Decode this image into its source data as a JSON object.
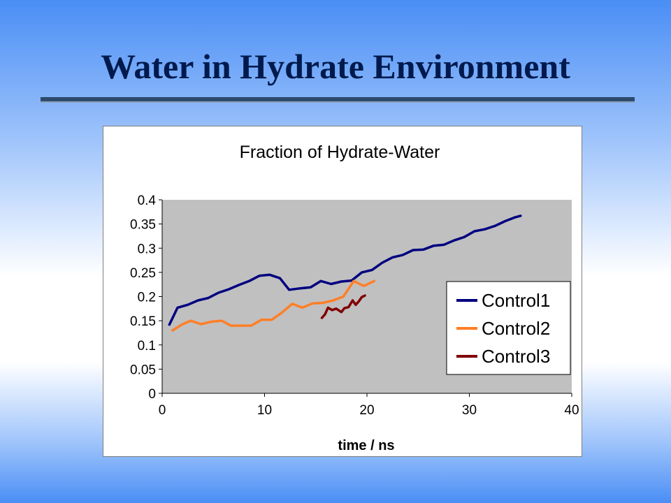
{
  "slide": {
    "title": "Water in Hydrate Environment"
  },
  "chart_data": {
    "type": "line",
    "title": "Fraction of Hydrate-Water",
    "xlabel": "time / ns",
    "ylabel": "",
    "xlim": [
      0,
      40
    ],
    "ylim": [
      0,
      0.4
    ],
    "x_ticks": [
      "0",
      "10",
      "20",
      "30",
      "40"
    ],
    "y_ticks": [
      "0",
      "0.05",
      "0.1",
      "0.15",
      "0.2",
      "0.25",
      "0.3",
      "0.35",
      "0.4"
    ],
    "grid": false,
    "plot_background": "#c0c0c0",
    "legend_position": "right",
    "series": [
      {
        "name": "Control1",
        "color": "#000080",
        "x": [
          0.7,
          1.5,
          2.5,
          3.5,
          4.5,
          5.5,
          6.5,
          7.5,
          8.5,
          9.5,
          10.5,
          11.5,
          12.4,
          13.5,
          14.5,
          15.5,
          16.5,
          17.5,
          18.5,
          19.5,
          20.5,
          21.5,
          22.5,
          23.5,
          24.5,
          25.5,
          26.5,
          27.5,
          28.5,
          29.5,
          30.5,
          31.5,
          32.5,
          33.5,
          34.5,
          35.0
        ],
        "y": [
          0.142,
          0.177,
          0.183,
          0.192,
          0.197,
          0.208,
          0.215,
          0.224,
          0.232,
          0.243,
          0.245,
          0.238,
          0.214,
          0.217,
          0.219,
          0.232,
          0.226,
          0.231,
          0.233,
          0.25,
          0.255,
          0.27,
          0.281,
          0.286,
          0.296,
          0.297,
          0.305,
          0.307,
          0.316,
          0.323,
          0.335,
          0.339,
          0.346,
          0.356,
          0.364,
          0.367
        ]
      },
      {
        "name": "Control2",
        "color": "#ff7f27",
        "x": [
          1.0,
          2.0,
          2.8,
          3.8,
          4.8,
          5.8,
          6.7,
          7.7,
          8.7,
          9.7,
          10.7,
          11.7,
          12.7,
          13.7,
          14.7,
          15.7,
          16.7,
          17.7,
          18.7,
          19.7,
          20.7
        ],
        "y": [
          0.13,
          0.143,
          0.15,
          0.143,
          0.148,
          0.15,
          0.14,
          0.14,
          0.14,
          0.152,
          0.152,
          0.167,
          0.185,
          0.177,
          0.186,
          0.187,
          0.192,
          0.2,
          0.232,
          0.222,
          0.232
        ]
      },
      {
        "name": "Control3",
        "color": "#800000",
        "x": [
          15.6,
          15.9,
          16.2,
          16.6,
          17.0,
          17.5,
          17.8,
          18.2,
          18.6,
          18.9,
          19.2,
          19.5,
          19.8
        ],
        "y": [
          0.156,
          0.163,
          0.177,
          0.172,
          0.175,
          0.168,
          0.176,
          0.178,
          0.192,
          0.183,
          0.19,
          0.199,
          0.202
        ]
      }
    ]
  }
}
